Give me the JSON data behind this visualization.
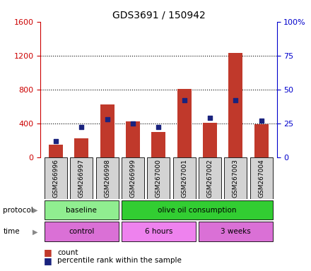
{
  "title": "GDS3691 / 150942",
  "samples": [
    "GSM266996",
    "GSM266997",
    "GSM266998",
    "GSM266999",
    "GSM267000",
    "GSM267001",
    "GSM267002",
    "GSM267003",
    "GSM267004"
  ],
  "counts": [
    150,
    220,
    620,
    420,
    300,
    810,
    410,
    1230,
    390
  ],
  "percentile_ranks": [
    12,
    22,
    28,
    25,
    22,
    42,
    29,
    42,
    27
  ],
  "ylim_left": [
    0,
    1600
  ],
  "ylim_right": [
    0,
    100
  ],
  "yticks_left": [
    0,
    400,
    800,
    1200,
    1600
  ],
  "yticks_right": [
    0,
    25,
    50,
    75,
    100
  ],
  "ytick_labels_right": [
    "0",
    "25",
    "50",
    "75",
    "100%"
  ],
  "bar_color": "#c0392b",
  "dot_color": "#1a237e",
  "protocol_groups": [
    {
      "label": "baseline",
      "start": 0,
      "end": 3,
      "color": "#90ee90"
    },
    {
      "label": "olive oil consumption",
      "start": 3,
      "end": 9,
      "color": "#32cd32"
    }
  ],
  "time_groups": [
    {
      "label": "control",
      "start": 0,
      "end": 3,
      "color": "#da70d6"
    },
    {
      "label": "6 hours",
      "start": 3,
      "end": 6,
      "color": "#ee82ee"
    },
    {
      "label": "3 weeks",
      "start": 6,
      "end": 9,
      "color": "#da70d6"
    }
  ],
  "axis_color_left": "#cc0000",
  "axis_color_right": "#0000cc"
}
